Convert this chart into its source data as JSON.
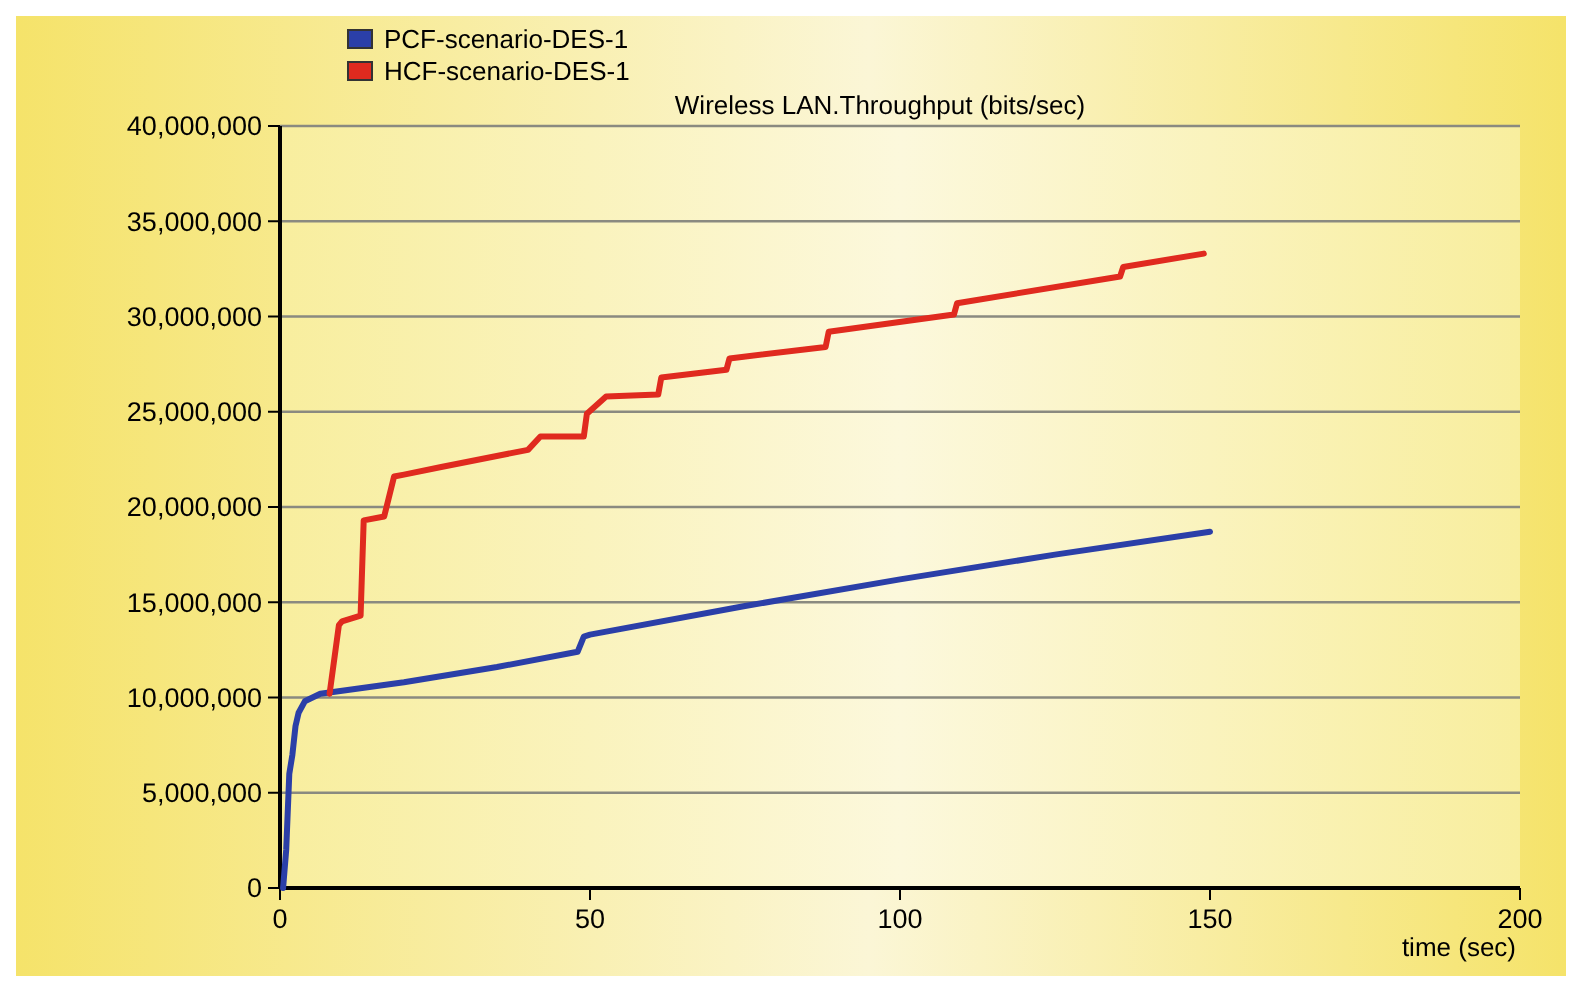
{
  "chart_data": {
    "type": "line",
    "title": "Wireless LAN.Throughput (bits/sec)",
    "xlabel": "time (sec)",
    "xlim": [
      0,
      200
    ],
    "xticks": [
      0,
      50,
      100,
      150,
      200
    ],
    "ylim": [
      0,
      40000000
    ],
    "yticks": [
      {
        "value": 0,
        "label": "0"
      },
      {
        "value": 5000000,
        "label": "5,000,000"
      },
      {
        "value": 10000000,
        "label": "10,000,000"
      },
      {
        "value": 15000000,
        "label": "15,000,000"
      },
      {
        "value": 20000000,
        "label": "20,000,000"
      },
      {
        "value": 25000000,
        "label": "25,000,000"
      },
      {
        "value": 30000000,
        "label": "30,000,000"
      },
      {
        "value": 35000000,
        "label": "35,000,000"
      },
      {
        "value": 40000000,
        "label": "40,000,000"
      }
    ],
    "grid": "y",
    "legend": "top left",
    "marker": "none",
    "line_style": "solid",
    "series": [
      {
        "name": "PCF-scenario-DES-1",
        "color": "#2b3fa8",
        "x": [
          0.5,
          1,
          1.5,
          2,
          2.5,
          3,
          4,
          6.5,
          20,
          35,
          48,
          49,
          50,
          75,
          100,
          125,
          150
        ],
        "values": [
          0,
          2000000,
          6000000,
          7000000,
          8500000,
          9200000,
          9800000,
          10200000,
          10800000,
          11600000,
          12400000,
          13200000,
          13300000,
          14800000,
          16200000,
          17500000,
          18700000
        ]
      },
      {
        "name": "HCF-scenario-DES-1",
        "color": "#e02a1f",
        "x": [
          8,
          9.5,
          10,
          13,
          13.5,
          16.8,
          18.4,
          20,
          26,
          40,
          42,
          49,
          49.5,
          52.6,
          61,
          61.5,
          72,
          72.5,
          88,
          88.5,
          108.7,
          109.2,
          135.5,
          136,
          149
        ],
        "values": [
          10200000,
          13800000,
          14000000,
          14300000,
          19300000,
          19500000,
          21600000,
          21700000,
          22100000,
          23000000,
          23700000,
          23700000,
          24900000,
          25800000,
          25900000,
          26800000,
          27200000,
          27800000,
          28400000,
          29200000,
          30100000,
          30700000,
          32100000,
          32600000,
          33300000
        ]
      }
    ]
  }
}
